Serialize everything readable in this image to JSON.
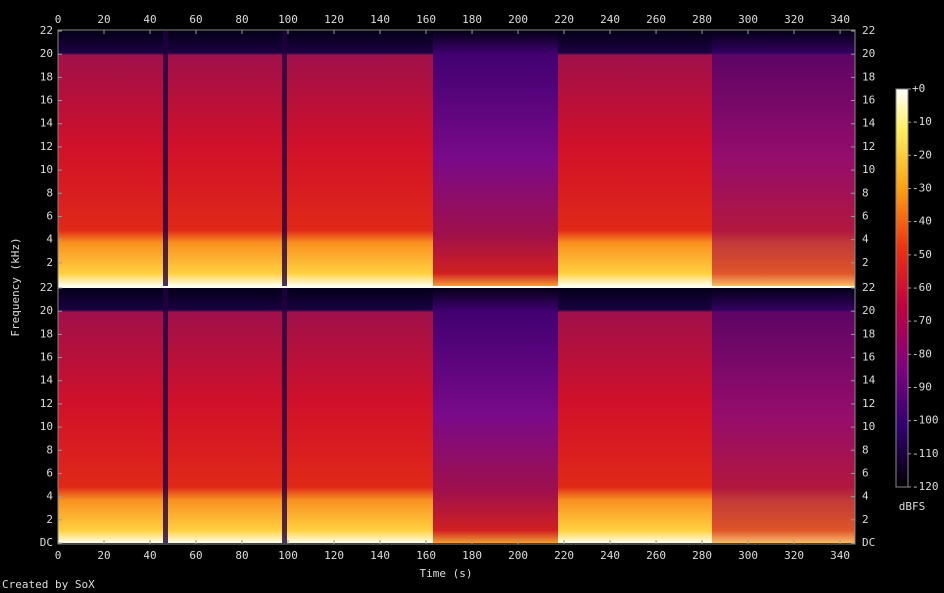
{
  "chart_data": {
    "type": "spectrogram",
    "x_label": "Time (s)",
    "y_label": "Frequency (kHz)",
    "credit": "Created by SoX",
    "xlim": [
      0,
      346.5
    ],
    "xticks": [
      0,
      20,
      40,
      60,
      80,
      100,
      120,
      140,
      160,
      180,
      200,
      220,
      240,
      260,
      280,
      300,
      320,
      340
    ],
    "panels": [
      {
        "ylim": [
          0,
          22
        ],
        "yticks": [
          2,
          4,
          6,
          8,
          10,
          12,
          14,
          16,
          18,
          20,
          22
        ]
      },
      {
        "ylim": [
          0,
          22
        ],
        "yticks": [
          {
            "value": 0,
            "label": "DC"
          },
          2,
          4,
          6,
          8,
          10,
          12,
          14,
          16,
          18,
          20,
          22
        ]
      }
    ],
    "colorbar": {
      "label": "dBFS",
      "zlim": [
        -120,
        0
      ],
      "zticks": [
        {
          "value": 0,
          "label": "+0"
        },
        -10,
        -20,
        -30,
        -40,
        -50,
        -60,
        -70,
        -80,
        -90,
        -100,
        -110,
        -120
      ]
    }
  }
}
